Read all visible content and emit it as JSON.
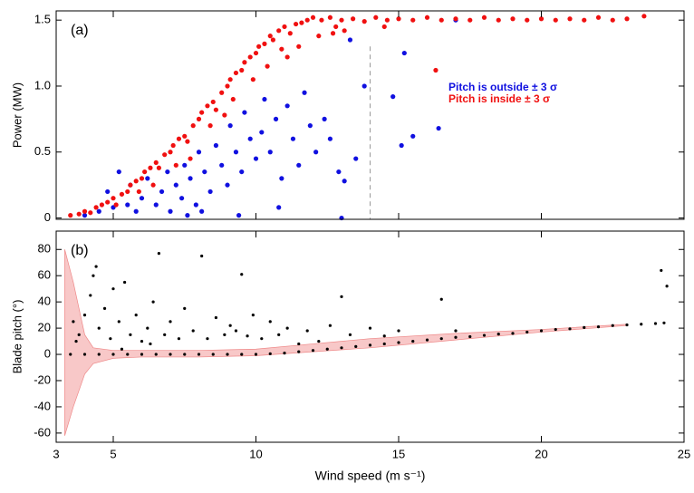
{
  "chart_data": [
    {
      "type": "scatter",
      "panel_label": "(a)",
      "ylabel": "Power (MW)",
      "xlim": [
        3,
        25
      ],
      "xticks": [
        3,
        5,
        10,
        15,
        20,
        25
      ],
      "ylim": [
        -0.01,
        1.57
      ],
      "yticks": [
        0,
        0.5,
        {
          "value": 1,
          "label": "1.0"
        },
        1.5
      ],
      "vline": 14,
      "series": [
        {
          "name": "Pitch is outside ± 3 σ",
          "color": "#1010e0",
          "x": [
            4.0,
            4.5,
            5.0,
            5.2,
            5.5,
            5.8,
            6.0,
            6.2,
            6.5,
            6.7,
            6.9,
            7.0,
            7.2,
            7.4,
            7.5,
            7.7,
            7.9,
            8.0,
            8.2,
            8.4,
            8.6,
            8.8,
            9.0,
            9.1,
            9.3,
            9.5,
            9.6,
            9.8,
            10.0,
            10.2,
            10.3,
            10.5,
            10.7,
            10.9,
            11.1,
            11.3,
            11.5,
            11.7,
            11.9,
            12.1,
            12.4,
            12.6,
            12.9,
            13.0,
            13.1,
            13.5,
            13.8,
            14.8,
            15.1,
            15.2,
            15.5,
            16.4,
            10.8,
            9.4,
            8.1,
            7.6,
            4.8,
            5.6,
            17.0,
            13.3
          ],
          "values": [
            0.02,
            0.05,
            0.08,
            0.35,
            0.1,
            0.05,
            0.15,
            0.3,
            0.1,
            0.2,
            0.35,
            0.05,
            0.25,
            0.15,
            0.4,
            0.3,
            0.1,
            0.5,
            0.35,
            0.2,
            0.55,
            0.4,
            0.25,
            0.7,
            0.5,
            0.35,
            0.8,
            0.6,
            0.45,
            0.65,
            0.9,
            0.5,
            0.75,
            0.3,
            0.85,
            0.6,
            0.4,
            0.95,
            0.7,
            0.5,
            0.75,
            0.6,
            0.35,
            0.0,
            0.28,
            0.45,
            1.0,
            0.92,
            0.55,
            1.25,
            0.62,
            0.68,
            0.08,
            0.02,
            0.05,
            0.02,
            0.2,
            0.25,
            1.5,
            1.35
          ]
        },
        {
          "name": "Pitch is inside ± 3 σ",
          "color": "#f01010",
          "x": [
            3.5,
            3.8,
            4.0,
            4.2,
            4.4,
            4.6,
            4.8,
            5.0,
            5.1,
            5.3,
            5.5,
            5.6,
            5.8,
            6.0,
            6.1,
            6.3,
            6.5,
            6.6,
            6.8,
            7.0,
            7.1,
            7.3,
            7.5,
            7.6,
            7.8,
            8.0,
            8.1,
            8.3,
            8.5,
            8.6,
            8.8,
            9.0,
            9.1,
            9.3,
            9.5,
            9.6,
            9.8,
            10.0,
            10.1,
            10.3,
            10.5,
            10.6,
            10.8,
            11.0,
            11.2,
            11.4,
            11.6,
            11.8,
            12.0,
            12.3,
            12.6,
            13.0,
            13.4,
            13.8,
            14.2,
            14.6,
            15.0,
            15.5,
            16.0,
            16.5,
            17.0,
            17.5,
            18.0,
            18.5,
            19.0,
            19.5,
            20.0,
            20.5,
            21.0,
            21.5,
            22.0,
            22.5,
            23.0,
            23.6,
            9.2,
            8.4,
            7.7,
            10.4,
            11.5,
            12.2,
            6.4,
            7.2,
            9.9,
            11.1,
            12.8,
            5.9,
            8.9,
            10.9,
            13.1,
            14.5,
            12.7,
            16.3
          ],
          "values": [
            0.02,
            0.03,
            0.05,
            0.04,
            0.08,
            0.1,
            0.12,
            0.15,
            0.1,
            0.18,
            0.2,
            0.25,
            0.28,
            0.3,
            0.35,
            0.38,
            0.42,
            0.38,
            0.48,
            0.5,
            0.55,
            0.6,
            0.62,
            0.58,
            0.7,
            0.75,
            0.8,
            0.85,
            0.88,
            0.82,
            0.95,
            1.0,
            1.05,
            1.1,
            1.12,
            1.18,
            1.22,
            1.25,
            1.3,
            1.32,
            1.38,
            1.35,
            1.42,
            1.45,
            1.4,
            1.47,
            1.48,
            1.5,
            1.52,
            1.5,
            1.52,
            1.5,
            1.51,
            1.49,
            1.52,
            1.5,
            1.51,
            1.5,
            1.52,
            1.5,
            1.51,
            1.5,
            1.52,
            1.5,
            1.51,
            1.5,
            1.51,
            1.5,
            1.51,
            1.5,
            1.52,
            1.5,
            1.51,
            1.53,
            0.9,
            0.7,
            0.45,
            1.15,
            1.3,
            1.38,
            0.25,
            0.4,
            1.05,
            1.22,
            1.45,
            0.2,
            0.78,
            1.28,
            1.42,
            1.45,
            1.4,
            1.12
          ]
        }
      ]
    },
    {
      "type": "scatter",
      "panel_label": "(b)",
      "ylabel": "Blade pitch (°)",
      "xlabel": "Wind speed (m s⁻¹)",
      "xlim": [
        3,
        25
      ],
      "xticks": [
        3,
        5,
        10,
        15,
        20,
        25
      ],
      "ylim": [
        -67,
        94
      ],
      "yticks": [
        -60,
        -40,
        -20,
        0,
        20,
        40,
        60,
        80
      ],
      "band": {
        "color": "#f8c8c8",
        "x": [
          3.3,
          3.6,
          4.0,
          4.3,
          5,
          6,
          8,
          10,
          12,
          14,
          17,
          20,
          23
        ],
        "upper": [
          80,
          55,
          15,
          5,
          3,
          3,
          3,
          4,
          8,
          12,
          16,
          19,
          23
        ],
        "lower": [
          -62,
          -40,
          -15,
          -7,
          -3,
          -2,
          -2,
          -1,
          2,
          5,
          11,
          17,
          22
        ]
      },
      "series": [
        {
          "color": "#000000",
          "x": [
            3.5,
            4.0,
            4.5,
            5.0,
            5.5,
            6.0,
            6.5,
            7.0,
            7.5,
            8.0,
            8.5,
            9.0,
            9.5,
            10.0,
            10.5,
            11,
            11.5,
            12,
            12.5,
            13,
            13.5,
            14,
            14.5,
            15,
            15.5,
            16,
            16.5,
            17,
            17.5,
            18,
            18.5,
            19,
            19.5,
            20,
            20.5,
            21,
            21.5,
            22,
            22.5,
            23,
            23.5,
            24,
            24.3,
            3.6,
            3.8,
            4.0,
            4.2,
            4.3,
            4.5,
            4.7,
            4.9,
            5.0,
            5.2,
            5.4,
            5.6,
            5.8,
            6.0,
            6.2,
            6.4,
            6.6,
            6.8,
            7.0,
            7.3,
            7.5,
            7.8,
            8.1,
            8.3,
            8.6,
            8.9,
            9.1,
            9.3,
            9.5,
            9.7,
            9.9,
            10.2,
            10.5,
            10.8,
            11.1,
            11.5,
            11.8,
            12.2,
            12.6,
            13.0,
            13.3,
            14.0,
            14.5,
            15.0,
            16.5,
            17.0,
            24.2,
            24.4,
            3.7,
            4.4,
            5.3,
            6.3
          ],
          "values": [
            0,
            0,
            0,
            0,
            0,
            0,
            0,
            0,
            0,
            0,
            0,
            0,
            0,
            0,
            0.5,
            1,
            2,
            3,
            4,
            5,
            6,
            7,
            8,
            9,
            10,
            11,
            12,
            13,
            13.5,
            14.5,
            15.5,
            16,
            17,
            18,
            19,
            19.5,
            20.5,
            21,
            22,
            22.5,
            23,
            23.5,
            24,
            25,
            15,
            30,
            45,
            60,
            20,
            35,
            12,
            50,
            25,
            55,
            15,
            30,
            10,
            20,
            40,
            77,
            15,
            25,
            12,
            35,
            18,
            75,
            12,
            28,
            15,
            22,
            18,
            61,
            14,
            30,
            12,
            25,
            15,
            20,
            8,
            18,
            10,
            22,
            44,
            15,
            20,
            14,
            18,
            42,
            18,
            64,
            52,
            10,
            67,
            4,
            8
          ]
        }
      ]
    }
  ]
}
